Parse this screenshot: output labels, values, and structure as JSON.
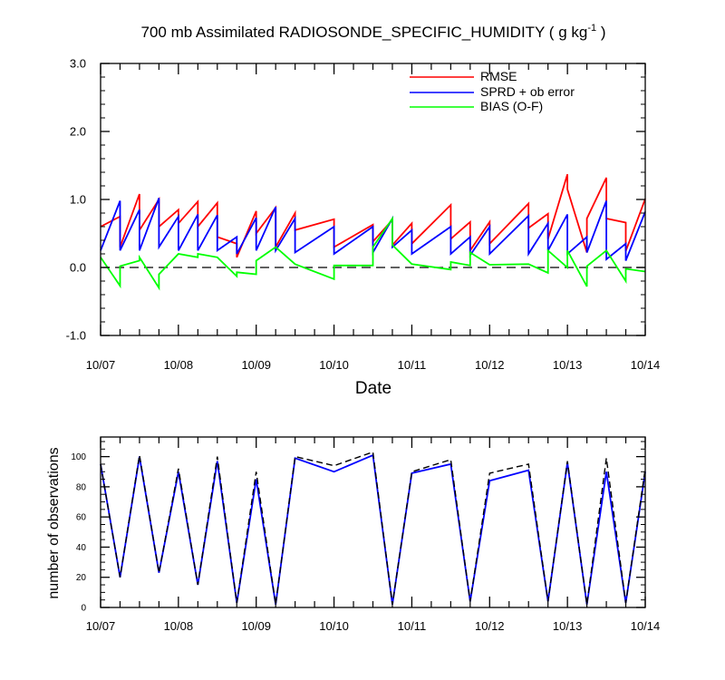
{
  "figure": {
    "title_main": "700 mb Assimilated RADIOSONDE_SPECIFIC_HUMIDITY ( g kg",
    "title_sup": "-1",
    "title_end": " )"
  },
  "chart_data": [
    {
      "type": "line",
      "xlabel": "Date",
      "ylabel": "",
      "xlim": [
        0,
        7
      ],
      "ylim": [
        -1.0,
        3.0
      ],
      "x_tick_labels": [
        "10/07",
        "10/08",
        "10/09",
        "10/10",
        "10/11",
        "10/12",
        "10/13",
        "10/14"
      ],
      "y_tick_labels": [
        "-1.0",
        "0.0",
        "1.0",
        "2.0",
        "3.0"
      ],
      "y_ticks": [
        -1.0,
        0.0,
        1.0,
        2.0,
        3.0
      ],
      "reference_line": 0.0,
      "legend_position": "top-right",
      "grid": false,
      "series": [
        {
          "name": "RMSE",
          "color": "#ff0000",
          "x": [
            0,
            0.25,
            0.25,
            0.5,
            0.5,
            0.75,
            0.75,
            1.0,
            1.0,
            1.25,
            1.25,
            1.5,
            1.5,
            1.75,
            1.75,
            2.0,
            2.0,
            2.25,
            2.25,
            2.5,
            2.5,
            3.0,
            3.0,
            3.5,
            3.5,
            3.75,
            3.75,
            4.0,
            4.0,
            4.5,
            4.5,
            4.75,
            4.75,
            5.0,
            5.0,
            5.5,
            5.5,
            5.75,
            5.75,
            6.0,
            6.0,
            6.25,
            6.25,
            6.5,
            6.5,
            6.75,
            6.75,
            7.0
          ],
          "y": [
            0.6,
            0.75,
            0.3,
            1.08,
            0.55,
            1.0,
            0.6,
            0.85,
            0.65,
            0.97,
            0.6,
            0.95,
            0.45,
            0.35,
            0.15,
            0.83,
            0.5,
            0.88,
            0.3,
            0.8,
            0.55,
            0.71,
            0.3,
            0.63,
            0.38,
            0.7,
            0.33,
            0.65,
            0.35,
            0.92,
            0.42,
            0.67,
            0.25,
            0.67,
            0.35,
            0.94,
            0.58,
            0.79,
            0.42,
            1.37,
            1.15,
            0.22,
            0.72,
            1.32,
            0.72,
            0.66,
            0.24,
            1.01
          ]
        },
        {
          "name": "SPRD + ob error",
          "color": "#0000ff",
          "x": [
            0,
            0.25,
            0.25,
            0.5,
            0.5,
            0.75,
            0.75,
            1.0,
            1.0,
            1.25,
            1.25,
            1.5,
            1.5,
            1.75,
            1.75,
            2.0,
            2.0,
            2.25,
            2.25,
            2.5,
            2.5,
            3.0,
            3.0,
            3.5,
            3.5,
            3.75,
            3.75,
            4.0,
            4.0,
            4.5,
            4.5,
            4.75,
            4.75,
            5.0,
            5.0,
            5.5,
            5.5,
            5.75,
            5.75,
            6.0,
            6.0,
            6.25,
            6.25,
            6.5,
            6.5,
            6.75,
            6.75,
            7.0
          ],
          "y": [
            0.25,
            0.98,
            0.25,
            0.85,
            0.25,
            1.02,
            0.3,
            0.75,
            0.25,
            0.78,
            0.25,
            0.77,
            0.25,
            0.45,
            0.2,
            0.73,
            0.25,
            0.89,
            0.25,
            0.72,
            0.22,
            0.6,
            0.2,
            0.6,
            0.22,
            0.72,
            0.3,
            0.55,
            0.2,
            0.6,
            0.2,
            0.45,
            0.18,
            0.6,
            0.2,
            0.76,
            0.2,
            0.65,
            0.25,
            0.78,
            0.2,
            0.45,
            0.22,
            0.98,
            0.12,
            0.35,
            0.1,
            0.82
          ]
        },
        {
          "name": "BIAS (O-F)",
          "color": "#00ff00",
          "x": [
            0,
            0.25,
            0.25,
            0.5,
            0.5,
            0.75,
            0.75,
            1.0,
            1.0,
            1.25,
            1.25,
            1.5,
            1.5,
            1.75,
            1.75,
            2.0,
            2.0,
            2.25,
            2.25,
            2.5,
            2.5,
            3.0,
            3.0,
            3.5,
            3.5,
            3.75,
            3.75,
            4.0,
            4.0,
            4.5,
            4.5,
            4.75,
            4.75,
            5.0,
            5.0,
            5.5,
            5.5,
            5.75,
            5.75,
            6.0,
            6.0,
            6.25,
            6.25,
            6.5,
            6.5,
            6.75,
            6.75,
            7.0
          ],
          "y": [
            0.15,
            -0.27,
            0.02,
            0.1,
            0.15,
            -0.3,
            -0.1,
            0.2,
            0.2,
            0.15,
            0.2,
            0.15,
            0.15,
            -0.13,
            -0.07,
            -0.1,
            0.1,
            0.3,
            0.3,
            0.05,
            0.05,
            -0.17,
            0.03,
            0.03,
            0.3,
            0.72,
            0.33,
            0.05,
            0.05,
            -0.03,
            0.08,
            0.03,
            0.22,
            0.04,
            0.04,
            0.05,
            0.05,
            -0.08,
            0.25,
            0.0,
            0.25,
            -0.28,
            0.02,
            0.25,
            0.25,
            -0.2,
            -0.02,
            -0.06
          ]
        }
      ]
    },
    {
      "type": "line",
      "xlabel": "",
      "ylabel": "number of observations",
      "xlim": [
        0,
        7
      ],
      "ylim": [
        0,
        113
      ],
      "x_tick_labels": [
        "10/07",
        "10/08",
        "10/09",
        "10/10",
        "10/11",
        "10/12",
        "10/13",
        "10/14"
      ],
      "y_tick_labels": [
        "0",
        "20",
        "40",
        "60",
        "80",
        "100"
      ],
      "y_ticks": [
        0,
        20,
        40,
        60,
        80,
        100
      ],
      "series": [
        {
          "color": "#0000ff",
          "style": "solid",
          "x": [
            0,
            0.25,
            0.5,
            0.75,
            1.0,
            1.25,
            1.5,
            1.75,
            2.0,
            2.25,
            2.5,
            3.0,
            3.5,
            3.75,
            4.0,
            4.5,
            4.75,
            5.0,
            5.5,
            5.75,
            6.0,
            6.25,
            6.5,
            6.75,
            7.0
          ],
          "y": [
            95,
            20,
            100,
            23,
            90,
            15,
            97,
            3,
            85,
            2,
            99,
            90,
            101,
            2,
            89,
            95,
            4,
            84,
            91,
            4,
            96,
            2,
            90,
            3,
            90
          ]
        },
        {
          "color": "#000000",
          "style": "dashed",
          "x": [
            0,
            0.25,
            0.5,
            0.75,
            1.0,
            1.25,
            1.5,
            1.75,
            2.0,
            2.25,
            2.5,
            3.0,
            3.5,
            3.75,
            4.0,
            4.5,
            4.75,
            5.0,
            5.5,
            5.75,
            6.0,
            6.25,
            6.5,
            6.75,
            7.0
          ],
          "y": [
            95,
            20,
            101,
            23,
            92,
            15,
            100,
            3,
            90,
            2,
            100,
            94,
            103,
            2,
            90,
            98,
            4,
            89,
            95,
            4,
            97,
            2,
            99,
            3,
            92
          ]
        }
      ]
    }
  ]
}
